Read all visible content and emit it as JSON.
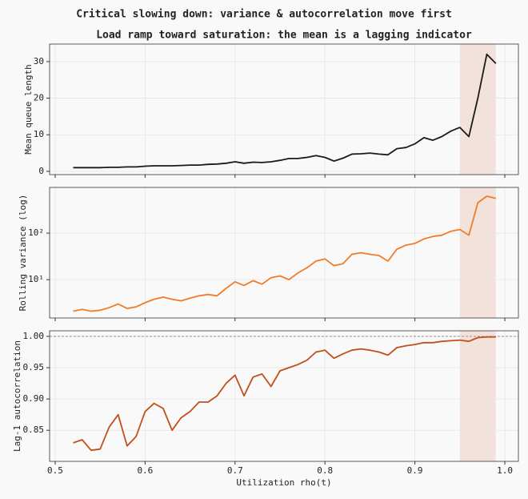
{
  "suptitle": "Critical slowing down: variance & autocorrelation move first",
  "chart_data": [
    {
      "type": "line",
      "title": "Load ramp toward saturation: the mean is a lagging indicator",
      "y_label": "Mean queue length",
      "x": [
        0.52,
        0.53,
        0.54,
        0.55,
        0.56,
        0.57,
        0.58,
        0.59,
        0.6,
        0.61,
        0.62,
        0.63,
        0.64,
        0.65,
        0.66,
        0.67,
        0.68,
        0.69,
        0.7,
        0.71,
        0.72,
        0.73,
        0.74,
        0.75,
        0.76,
        0.77,
        0.78,
        0.79,
        0.8,
        0.81,
        0.82,
        0.83,
        0.84,
        0.85,
        0.86,
        0.87,
        0.88,
        0.89,
        0.9,
        0.91,
        0.92,
        0.93,
        0.94,
        0.95,
        0.96,
        0.97,
        0.98,
        0.99
      ],
      "series": [
        {
          "color": "#1a1a1a",
          "values": [
            1.0,
            1.0,
            1.0,
            1.0,
            1.1,
            1.1,
            1.2,
            1.2,
            1.4,
            1.5,
            1.5,
            1.5,
            1.6,
            1.7,
            1.7,
            1.9,
            2.0,
            2.2,
            2.6,
            2.2,
            2.5,
            2.4,
            2.6,
            3.0,
            3.5,
            3.5,
            3.8,
            4.3,
            3.8,
            2.8,
            3.6,
            4.7,
            4.8,
            5.0,
            4.7,
            4.5,
            6.2,
            6.5,
            7.5,
            9.2,
            8.5,
            9.5,
            11.0,
            12.0,
            9.5,
            20.0,
            32.0,
            29.5
          ]
        }
      ],
      "xlim": [
        0.4938,
        1.0151
      ],
      "ylim": [
        -0.9,
        34.8
      ],
      "yticks": [
        0,
        10,
        20,
        30
      ],
      "log_y": false,
      "grid": true,
      "shade": [
        0.95,
        0.99
      ],
      "shade_color": "#f3e2db"
    },
    {
      "type": "line",
      "y_label": "Rolling variance (log)",
      "x": [
        0.52,
        0.53,
        0.54,
        0.55,
        0.56,
        0.57,
        0.58,
        0.59,
        0.6,
        0.61,
        0.62,
        0.63,
        0.64,
        0.65,
        0.66,
        0.67,
        0.68,
        0.69,
        0.7,
        0.71,
        0.72,
        0.73,
        0.74,
        0.75,
        0.76,
        0.77,
        0.78,
        0.79,
        0.8,
        0.81,
        0.82,
        0.83,
        0.84,
        0.85,
        0.86,
        0.87,
        0.88,
        0.89,
        0.9,
        0.91,
        0.92,
        0.93,
        0.94,
        0.95,
        0.96,
        0.97,
        0.98,
        0.99
      ],
      "series": [
        {
          "color": "#f07c28",
          "values": [
            2.1,
            2.3,
            2.1,
            2.2,
            2.5,
            3.0,
            2.4,
            2.6,
            3.2,
            3.8,
            4.2,
            3.8,
            3.5,
            4.0,
            4.5,
            4.8,
            4.5,
            6.5,
            9.0,
            7.5,
            9.5,
            8.0,
            11,
            12,
            10,
            14,
            18,
            25,
            28,
            20,
            22,
            35,
            38,
            35,
            33,
            25,
            45,
            55,
            60,
            75,
            85,
            90,
            110,
            120,
            90,
            450,
            620,
            560
          ]
        }
      ],
      "xlim": [
        0.4938,
        1.0151
      ],
      "ylim": [
        1.5,
        960
      ],
      "yticks": [
        {
          "value": 10,
          "label": "10¹"
        },
        {
          "value": 100,
          "label": "10²"
        }
      ],
      "log_y": true,
      "grid": true,
      "shade": [
        0.95,
        0.99
      ],
      "shade_color": "#f3e2db"
    },
    {
      "type": "line",
      "y_label": "Lag-1 autocorrelation",
      "x_label": "Utilization rho(t)",
      "x": [
        0.52,
        0.53,
        0.54,
        0.55,
        0.56,
        0.57,
        0.58,
        0.59,
        0.6,
        0.61,
        0.62,
        0.63,
        0.64,
        0.65,
        0.66,
        0.67,
        0.68,
        0.69,
        0.7,
        0.71,
        0.72,
        0.73,
        0.74,
        0.75,
        0.76,
        0.77,
        0.78,
        0.79,
        0.8,
        0.81,
        0.82,
        0.83,
        0.84,
        0.85,
        0.86,
        0.87,
        0.88,
        0.89,
        0.9,
        0.91,
        0.92,
        0.93,
        0.94,
        0.95,
        0.96,
        0.97,
        0.98,
        0.99
      ],
      "series": [
        {
          "color": "#c0501c",
          "values": [
            0.83,
            0.835,
            0.818,
            0.82,
            0.855,
            0.875,
            0.825,
            0.84,
            0.88,
            0.893,
            0.885,
            0.85,
            0.87,
            0.88,
            0.895,
            0.895,
            0.905,
            0.925,
            0.938,
            0.905,
            0.935,
            0.94,
            0.92,
            0.945,
            0.95,
            0.955,
            0.962,
            0.975,
            0.978,
            0.965,
            0.972,
            0.978,
            0.98,
            0.978,
            0.975,
            0.97,
            0.982,
            0.985,
            0.987,
            0.99,
            0.99,
            0.992,
            0.993,
            0.994,
            0.992,
            0.998,
            0.999,
            0.999
          ]
        }
      ],
      "xlim": [
        0.4938,
        1.0151
      ],
      "ylim": [
        0.8004,
        1.0089
      ],
      "yticks": [
        0.85,
        {
          "value": 0.9,
          "label": "0.90"
        },
        0.95,
        {
          "value": 1,
          "label": "1.00"
        }
      ],
      "xticks": [
        0.5,
        0.6,
        0.7,
        0.8,
        0.9,
        {
          "value": 1,
          "label": "1.0"
        }
      ],
      "hline": 1,
      "log_y": false,
      "grid": true,
      "shade": [
        0.95,
        0.99
      ],
      "shade_color": "#f3e2db"
    }
  ]
}
